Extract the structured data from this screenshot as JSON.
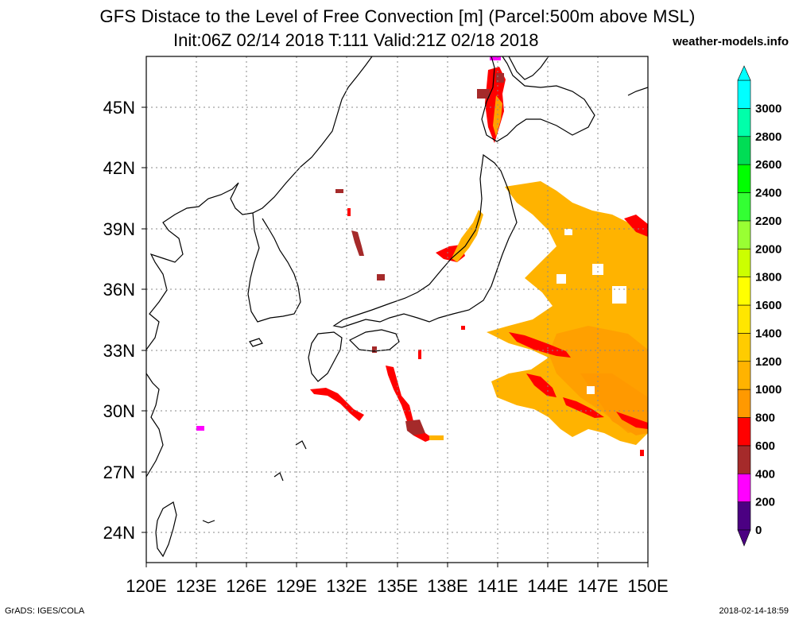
{
  "title_line1": "GFS Distace to the Level of Free Convection [m] (Parcel:500m above MSL)",
  "title_line2": "Init:06Z 02/14 2018 T:111 Valid:21Z 02/18 2018",
  "site": "weather-models.info",
  "footer_left": "GrADS: IGES/COLA",
  "footer_right": "2018-02-14-18:59",
  "lat_labels": [
    "45N",
    "42N",
    "39N",
    "36N",
    "33N",
    "30N",
    "27N",
    "24N"
  ],
  "lon_labels": [
    "120E",
    "123E",
    "126E",
    "129E",
    "132E",
    "135E",
    "138E",
    "141E",
    "144E",
    "147E",
    "150E"
  ],
  "colorbar": {
    "labels": [
      "0",
      "200",
      "400",
      "600",
      "800",
      "1000",
      "1200",
      "1400",
      "1600",
      "1800",
      "2000",
      "2200",
      "2400",
      "2600",
      "2800",
      "3000"
    ],
    "colors": [
      "#4b0082",
      "#ff00ff",
      "#a52a2a",
      "#ff0000",
      "#ff9900",
      "#ffb300",
      "#ffcc00",
      "#ffe600",
      "#ffff00",
      "#ccff00",
      "#99ff33",
      "#33ff33",
      "#00ff00",
      "#00dd55",
      "#00ffaa",
      "#00ffff"
    ]
  },
  "map": {
    "lon_range": [
      120,
      150
    ],
    "lat_range": [
      22.5,
      47.5
    ],
    "grid": true
  }
}
